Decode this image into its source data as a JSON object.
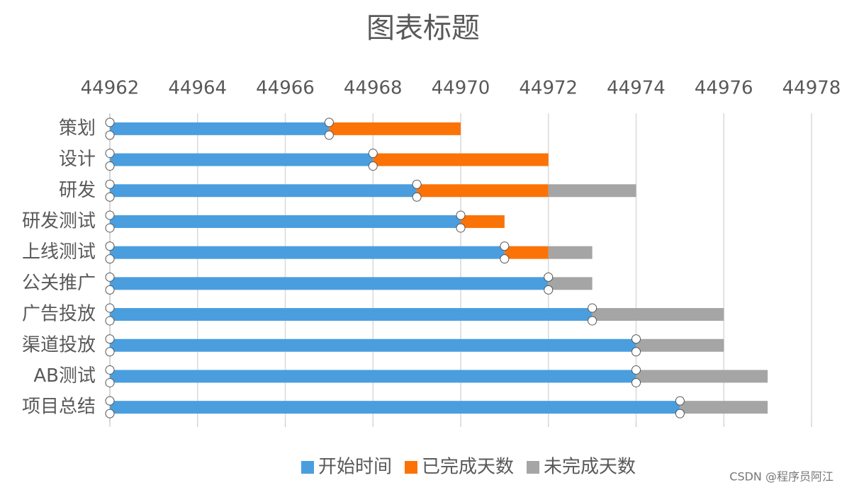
{
  "chart_data": {
    "type": "gantt",
    "title": "图表标题",
    "categories": [
      "策划",
      "设计",
      "研发",
      "研发测试",
      "上线测试",
      "公关推广",
      "广告投放",
      "渠道投放",
      "AB测试",
      "项目总结"
    ],
    "series": [
      {
        "name": "开始时间",
        "color": "#4a9ede",
        "values": [
          44967,
          44968,
          44969,
          44970,
          44971,
          44972,
          44973,
          44974,
          44974,
          44975
        ]
      },
      {
        "name": "已完成天数",
        "color": "#fb7307",
        "values": [
          3,
          4,
          3,
          1,
          1,
          0,
          0,
          0,
          0,
          0
        ]
      },
      {
        "name": "未完成天数",
        "color": "#a5a5a5",
        "values": [
          0,
          0,
          2,
          0,
          1,
          1,
          3,
          2,
          3,
          2
        ]
      }
    ],
    "xlim": [
      44962,
      44978
    ],
    "xticks": [
      44962,
      44964,
      44966,
      44968,
      44970,
      44972,
      44974,
      44976,
      44978
    ],
    "grid": true,
    "legend": "bottom",
    "watermark": "CSDN @程序员阿江"
  }
}
